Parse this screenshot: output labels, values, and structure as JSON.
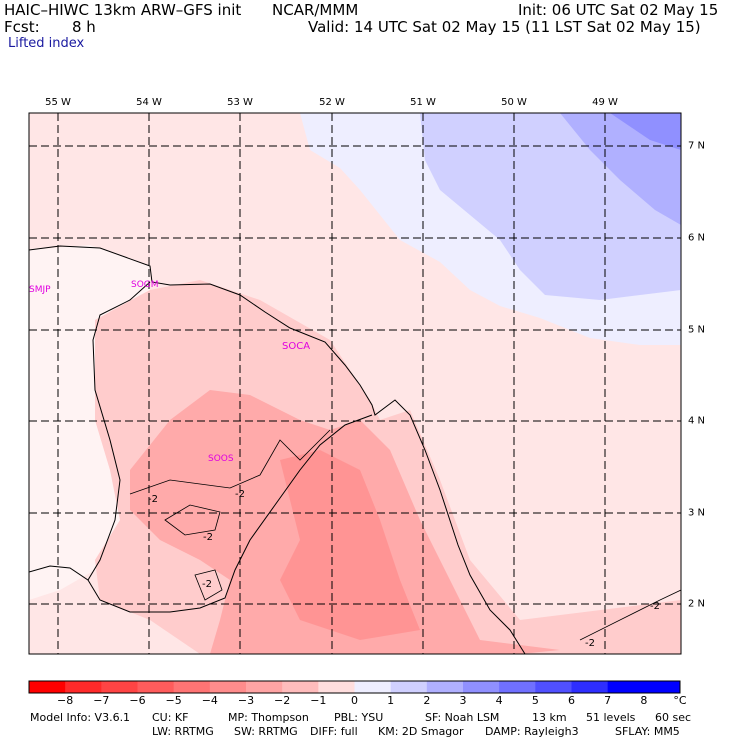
{
  "header": {
    "model": "HAIC–HIWC 13km ARW–GFS init",
    "org": "NCAR/MMM",
    "init": "Init: 06 UTC Sat 02 May 15",
    "fcst_label": "Fcst:",
    "fcst_value": "8 h",
    "valid": "Valid: 14 UTC Sat 02 May 15 (11 LST Sat 02 May 15)",
    "field": "Lifted index"
  },
  "map": {
    "lon_labels": [
      "55 W",
      "54 W",
      "53 W",
      "52 W",
      "51 W",
      "50 W",
      "49 W"
    ],
    "lat_labels": [
      "7 N",
      "6 N",
      "5 N",
      "4 N",
      "3 N",
      "2 N"
    ],
    "stations": [
      "SMJP",
      "SOGM",
      "SOCA",
      "SOOS"
    ],
    "contour_labels": [
      "-2",
      "-2",
      "-2",
      "-2",
      "-2",
      "-2"
    ]
  },
  "colorbar": {
    "ticks": [
      "−8",
      "−7",
      "−6",
      "−5",
      "−4",
      "−3",
      "−2",
      "−1",
      "0",
      "1",
      "2",
      "3",
      "4",
      "5",
      "6",
      "7",
      "8"
    ],
    "unit": "°C",
    "colors": [
      "#ff0000",
      "#ff2a2a",
      "#ff4444",
      "#ff5c5c",
      "#ff7474",
      "#ff8c8c",
      "#ffa4a4",
      "#ffbcbc",
      "#ffdede",
      "#eeeeff",
      "#d0d0ff",
      "#b0b0ff",
      "#9090ff",
      "#7070ff",
      "#5050ff",
      "#2e2eff",
      "#0000ff"
    ]
  },
  "footer": {
    "line1": [
      "Model Info: V3.6.1",
      "CU: KF",
      "MP: Thompson",
      "PBL: YSU",
      "SF: Noah LSM",
      "13 km",
      "51 levels",
      "60 sec"
    ],
    "line2": [
      "LW: RRTMG",
      "SW: RRTMG",
      "DIFF: full",
      "KM: 2D Smagor",
      "DAMP: Rayleigh3",
      "SFLAY: MM5"
    ]
  }
}
